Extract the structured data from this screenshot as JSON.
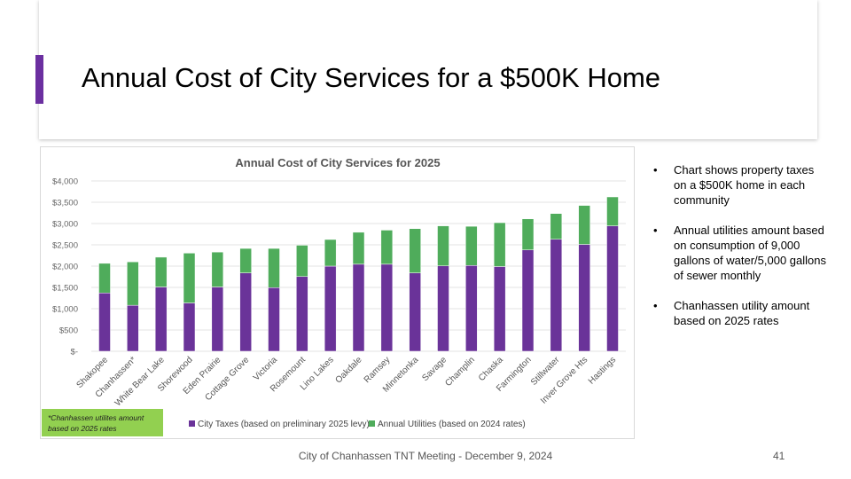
{
  "slide": {
    "title": "Annual Cost of City Services for a $500K Home",
    "footer": "City of Chanhassen TNT Meeting - December 9, 2024",
    "page_number": "41",
    "accent_color": "#6b2fa0"
  },
  "bullets": [
    "Chart shows property taxes on a $500K home in each community",
    "Annual utilities amount based on  consumption of 9,000 gallons of water/5,000 gallons of sewer monthly",
    "Chanhassen utility amount based on 2025 rates"
  ],
  "chart_data": {
    "type": "bar",
    "stacked": true,
    "title": "Annual Cost of City Services for 2025",
    "xlabel": "",
    "ylabel": "",
    "ylim": [
      0,
      4000
    ],
    "yticks": [
      0,
      500,
      1000,
      1500,
      2000,
      2500,
      3000,
      3500,
      4000
    ],
    "ytick_labels": [
      "$-",
      "$500",
      "$1,000",
      "$1,500",
      "$2,000",
      "$2,500",
      "$3,000",
      "$3,500",
      "$4,000"
    ],
    "grid": true,
    "legend_position": "bottom",
    "categories": [
      "Shakopee",
      "Chanhassen*",
      "White Bear Lake",
      "Shorewood",
      "Eden Prairie",
      "Cottage Grove",
      "Victoria",
      "Rosemount",
      "Lino Lakes",
      "Oakdale",
      "Ramsey",
      "Minnetonka",
      "Savage",
      "Champlin",
      "Chaska",
      "Farmington",
      "Stillwater",
      "Inver Grove Hts",
      "Hastings"
    ],
    "series": [
      {
        "name": "City Taxes (based on preliminary 2025 levy)",
        "color": "#6a3399",
        "values": [
          1370,
          1080,
          1510,
          1135,
          1510,
          1840,
          1495,
          1755,
          2000,
          2045,
          2045,
          1840,
          2005,
          2015,
          1990,
          2380,
          2630,
          2510,
          2945
        ]
      },
      {
        "name": "Annual Utilities (based on 2024 rates)",
        "color": "#4fac5b",
        "values": [
          695,
          1020,
          700,
          1170,
          820,
          575,
          920,
          735,
          625,
          750,
          800,
          1040,
          940,
          920,
          1030,
          730,
          605,
          915,
          680
        ]
      }
    ],
    "annotation": "*Chanhassen utilites amount based on 2025 rates",
    "annotation_color": "#92d050"
  }
}
